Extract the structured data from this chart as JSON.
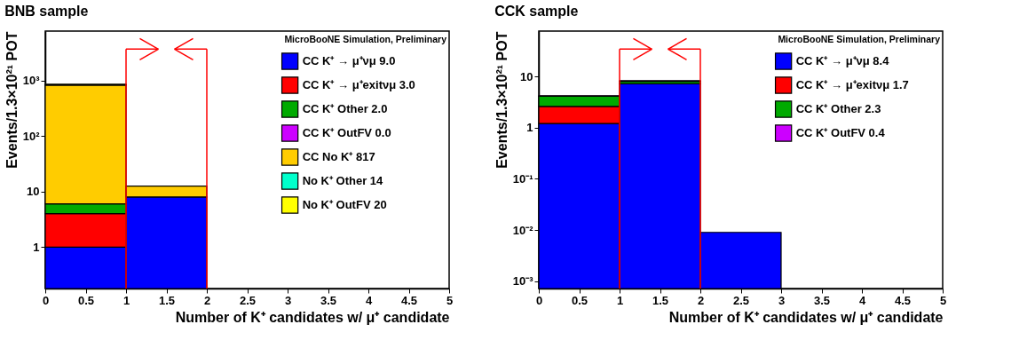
{
  "chart_data": [
    {
      "type": "bar",
      "title": "BNB sample",
      "xlabel": "Number of K⁺ candidates w/  μ⁺ candidate",
      "ylabel": "Events/1.3×10²¹ POT",
      "stacked": true,
      "log": "y",
      "grid": false,
      "legend": "top right",
      "x": [
        0.5,
        1.5
      ],
      "series": [
        {
          "name": "CC K⁺ → μ⁺νμ 9.0",
          "color": "#0000ff",
          "values": [
            1.0,
            8.0
          ]
        },
        {
          "name": "CC K⁺ → μ⁺exitνμ 3.0",
          "color": "#ff0000",
          "values": [
            3.0,
            null
          ]
        },
        {
          "name": "CC K⁺ Other 2.0",
          "color": "#00aa00",
          "values": [
            2.0,
            null
          ]
        },
        {
          "name": "CC K⁺ OutFV 0.0",
          "color": "#cc00ff",
          "values": [
            null,
            null
          ]
        },
        {
          "name": "CC No K⁺ 817",
          "color": "#ffcc00",
          "values": [
            812,
            4.5
          ]
        },
        {
          "name": "No K⁺ Other 14",
          "color": "#00ffcc",
          "values": [
            14,
            null
          ]
        },
        {
          "name": "No K⁺ OutFV 20",
          "color": "#ffff00",
          "values": [
            20,
            null
          ]
        }
      ],
      "xlim": [
        0,
        5
      ],
      "xticks": [
        0,
        0.5,
        1,
        1.5,
        2,
        2.5,
        3,
        3.5,
        4,
        4.5,
        5
      ],
      "ylim": [
        0.18,
        7700
      ],
      "yticks": [
        1,
        10,
        {
          "value": 100,
          "label": "10²"
        },
        {
          "value": 1000,
          "label": "10³"
        }
      ],
      "ref_lines": [
        {
          "axis": "x",
          "value": 1,
          "color": "#ff0000"
        },
        {
          "axis": "x",
          "value": 2,
          "color": "#ff0000"
        }
      ],
      "annotations": [
        "MicroBooNE Simulation, Preliminary"
      ]
    },
    {
      "type": "bar",
      "title": "CCK sample",
      "xlabel": "Number of K⁺ candidates w/  μ⁺ candidate",
      "ylabel": "Events/1.3×10²¹ POT",
      "stacked": true,
      "log": "y",
      "grid": false,
      "legend": "top right",
      "x": [
        0.5,
        1.5,
        2.5
      ],
      "series": [
        {
          "name": "CC K⁺ → μ⁺νμ 8.4",
          "color": "#0000ff",
          "values": [
            1.2,
            7.2,
            0.009
          ]
        },
        {
          "name": "CC K⁺ → μ⁺exitνμ 1.7",
          "color": "#ff0000",
          "values": [
            1.4,
            null,
            null
          ]
        },
        {
          "name": "CC K⁺ Other 2.3",
          "color": "#00aa00",
          "values": [
            1.5,
            0.8,
            null
          ]
        },
        {
          "name": "CC K⁺ OutFV 0.4",
          "color": "#cc00ff",
          "values": [
            0.1,
            0.3,
            null
          ]
        }
      ],
      "xlim": [
        0,
        5
      ],
      "xticks": [
        0,
        0.5,
        1,
        1.5,
        2,
        2.5,
        3,
        3.5,
        4,
        4.5,
        5
      ],
      "ylim": [
        0.00072,
        77
      ],
      "yticks": [
        {
          "value": 0.001,
          "label": "10⁻³"
        },
        {
          "value": 0.01,
          "label": "10⁻²"
        },
        {
          "value": 0.1,
          "label": "10⁻¹"
        },
        1,
        10
      ],
      "ref_lines": [
        {
          "axis": "x",
          "value": 1,
          "color": "#ff0000"
        },
        {
          "axis": "x",
          "value": 2,
          "color": "#ff0000"
        }
      ],
      "annotations": [
        "MicroBooNE Simulation, Preliminary"
      ]
    }
  ]
}
